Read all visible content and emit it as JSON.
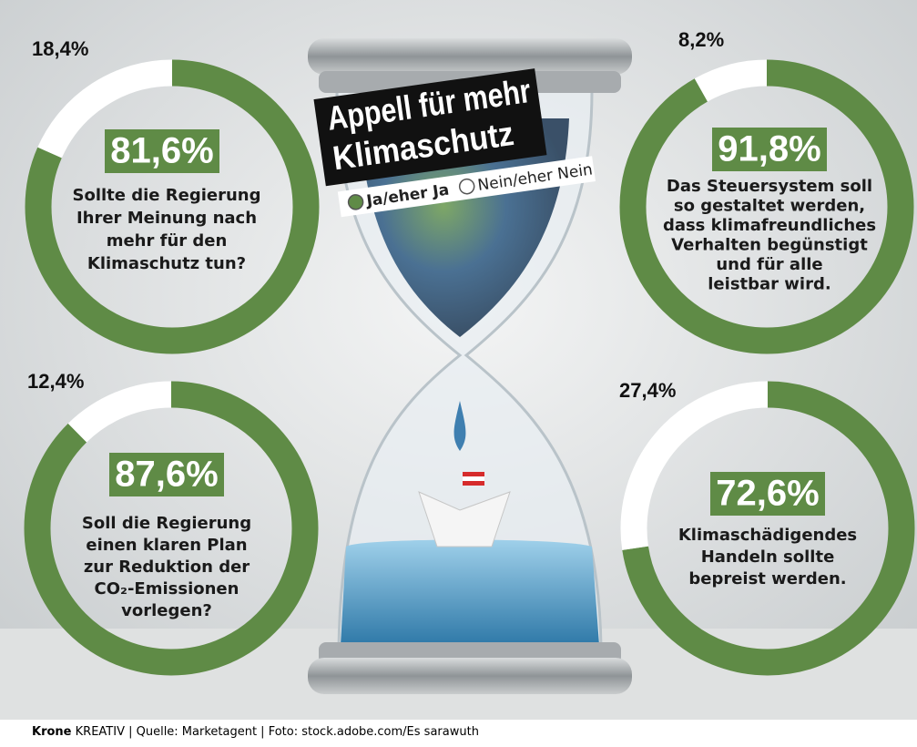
{
  "title": [
    "Appell für mehr",
    "Klimaschutz"
  ],
  "legend": {
    "items": [
      "Ja/eher Ja",
      "Nein/eher Nein"
    ],
    "colors": [
      "#5f8b46",
      "#ffffff"
    ]
  },
  "chart_data": [
    {
      "type": "donut",
      "text": [
        "Sollte die Regierung",
        "Ihrer Meinung nach",
        "mehr für den",
        "Klimaschutz tun?"
      ],
      "values": [
        81.6,
        18.4
      ],
      "value_labels": [
        "81,6%",
        "18,4%"
      ],
      "colors": [
        "#5f8b46",
        "#ffffff"
      ]
    },
    {
      "type": "donut",
      "text": [
        "Das Steuersystem soll",
        "so gestaltet werden,",
        "dass klimafreundliches",
        "Verhalten begünstigt",
        "und für alle",
        "leistbar wird."
      ],
      "values": [
        91.8,
        8.2
      ],
      "value_labels": [
        "91,8%",
        "8,2%"
      ],
      "colors": [
        "#5f8b46",
        "#ffffff"
      ]
    },
    {
      "type": "donut",
      "text": [
        "Soll die Regierung",
        "einen klaren Plan",
        "zur Reduktion der",
        "CO₂-Emissionen",
        "vorlegen?"
      ],
      "values": [
        87.6,
        12.4
      ],
      "value_labels": [
        "87,6%",
        "12,4%"
      ],
      "colors": [
        "#5f8b46",
        "#ffffff"
      ]
    },
    {
      "type": "donut",
      "text": [
        "Klimaschädigendes",
        "Handeln sollte",
        "bepreist werden."
      ],
      "values": [
        72.6,
        27.4
      ],
      "value_labels": [
        "72,6%",
        "27,4%"
      ],
      "colors": [
        "#5f8b46",
        "#ffffff"
      ]
    }
  ],
  "footer": {
    "brand": "Krone",
    "rest": "KREATIV | Quelle: Marketagent | Foto: stock.adobe.com/Es sarawuth"
  }
}
